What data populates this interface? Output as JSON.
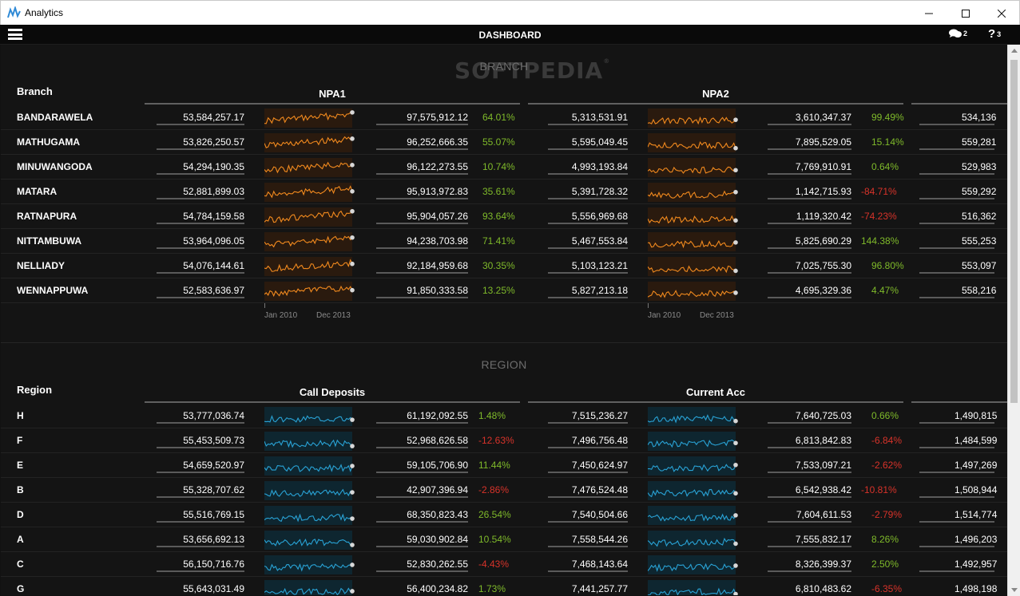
{
  "window": {
    "title": "Analytics"
  },
  "appbar": {
    "title": "DASHBOARD",
    "comments_count": "2",
    "help_count": "3"
  },
  "branch_section": {
    "heading": "BRANCH",
    "row_header": "Branch",
    "groups": [
      "NPA1",
      "NPA2"
    ],
    "axis": {
      "start": "Jan 2010",
      "end": "Dec 2013"
    },
    "sparkline_color": "#f28a1e",
    "sparkline_fill": "#2a1a0e",
    "rows": [
      {
        "name": "BANDARAWELA",
        "g1a": "53,584,257.17",
        "g1b": "97,575,912.12",
        "g1p": "64.01%",
        "g1s": "pos",
        "g2a": "5,313,531.91",
        "g2b": "3,610,347.37",
        "g2p": "99.49%",
        "g2s": "pos",
        "g3": "534,136"
      },
      {
        "name": "MATHUGAMA",
        "g1a": "53,826,250.57",
        "g1b": "96,252,666.35",
        "g1p": "55.07%",
        "g1s": "pos",
        "g2a": "5,595,049.45",
        "g2b": "7,895,529.05",
        "g2p": "15.14%",
        "g2s": "pos",
        "g3": "559,281"
      },
      {
        "name": "MINUWANGODA",
        "g1a": "54,294,190.35",
        "g1b": "96,122,273.55",
        "g1p": "10.74%",
        "g1s": "pos",
        "g2a": "4,993,193.84",
        "g2b": "7,769,910.91",
        "g2p": "0.64%",
        "g2s": "pos",
        "g3": "529,983"
      },
      {
        "name": "MATARA",
        "g1a": "52,881,899.03",
        "g1b": "95,913,972.83",
        "g1p": "35.61%",
        "g1s": "pos",
        "g2a": "5,391,728.32",
        "g2b": "1,142,715.93",
        "g2p": "-84.71%",
        "g2s": "neg",
        "g3": "559,292"
      },
      {
        "name": "RATNAPURA",
        "g1a": "54,784,159.58",
        "g1b": "95,904,057.26",
        "g1p": "93.64%",
        "g1s": "pos",
        "g2a": "5,556,969.68",
        "g2b": "1,119,320.42",
        "g2p": "-74.23%",
        "g2s": "neg",
        "g3": "516,362"
      },
      {
        "name": "NITTAMBUWA",
        "g1a": "53,964,096.05",
        "g1b": "94,238,703.98",
        "g1p": "71.41%",
        "g1s": "pos",
        "g2a": "5,467,553.84",
        "g2b": "5,825,690.29",
        "g2p": "144.38%",
        "g2s": "pos",
        "g3": "555,253"
      },
      {
        "name": "NELLIADY",
        "g1a": "54,076,144.61",
        "g1b": "92,184,959.68",
        "g1p": "30.35%",
        "g1s": "pos",
        "g2a": "5,103,123.21",
        "g2b": "7,025,755.30",
        "g2p": "96.80%",
        "g2s": "pos",
        "g3": "553,097"
      },
      {
        "name": "WENNAPPUWA",
        "g1a": "52,583,636.97",
        "g1b": "91,850,333.58",
        "g1p": "13.25%",
        "g1s": "pos",
        "g2a": "5,827,213.18",
        "g2b": "4,695,329.36",
        "g2p": "4.47%",
        "g2s": "pos",
        "g3": "558,216"
      }
    ]
  },
  "region_section": {
    "heading": "REGION",
    "row_header": "Region",
    "groups": [
      "Call Deposits",
      "Current Acc"
    ],
    "sparkline_color": "#29a3d6",
    "sparkline_fill": "#0e2630",
    "rows": [
      {
        "name": "H",
        "g1a": "53,777,036.74",
        "g1b": "61,192,092.55",
        "g1p": "1.48%",
        "g1s": "pos",
        "g2a": "7,515,236.27",
        "g2b": "7,640,725.03",
        "g2p": "0.66%",
        "g2s": "pos",
        "g3": "1,490,815"
      },
      {
        "name": "F",
        "g1a": "55,453,509.73",
        "g1b": "52,968,626.58",
        "g1p": "-12.63%",
        "g1s": "neg",
        "g2a": "7,496,756.48",
        "g2b": "6,813,842.83",
        "g2p": "-6.84%",
        "g2s": "neg",
        "g3": "1,484,599"
      },
      {
        "name": "E",
        "g1a": "54,659,520.97",
        "g1b": "59,105,706.90",
        "g1p": "11.44%",
        "g1s": "pos",
        "g2a": "7,450,624.97",
        "g2b": "7,533,097.21",
        "g2p": "-2.62%",
        "g2s": "neg",
        "g3": "1,497,269"
      },
      {
        "name": "B",
        "g1a": "55,328,707.62",
        "g1b": "42,907,396.94",
        "g1p": "-2.86%",
        "g1s": "neg",
        "g2a": "7,476,524.48",
        "g2b": "6,542,938.42",
        "g2p": "-10.81%",
        "g2s": "neg",
        "g3": "1,508,944"
      },
      {
        "name": "D",
        "g1a": "55,516,769.15",
        "g1b": "68,350,823.43",
        "g1p": "26.54%",
        "g1s": "pos",
        "g2a": "7,540,504.66",
        "g2b": "7,604,611.53",
        "g2p": "-2.79%",
        "g2s": "neg",
        "g3": "1,514,774"
      },
      {
        "name": "A",
        "g1a": "53,656,692.13",
        "g1b": "59,030,902.84",
        "g1p": "10.54%",
        "g1s": "pos",
        "g2a": "7,558,544.26",
        "g2b": "7,555,832.17",
        "g2p": "8.26%",
        "g2s": "pos",
        "g3": "1,496,203"
      },
      {
        "name": "C",
        "g1a": "56,150,716.76",
        "g1b": "52,830,262.55",
        "g1p": "-4.43%",
        "g1s": "neg",
        "g2a": "7,468,143.64",
        "g2b": "8,326,399.37",
        "g2p": "2.50%",
        "g2s": "pos",
        "g3": "1,492,957"
      },
      {
        "name": "G",
        "g1a": "55,643,031.49",
        "g1b": "56,400,234.82",
        "g1p": "1.73%",
        "g1s": "pos",
        "g2a": "7,441,257.77",
        "g2b": "6,810,483.62",
        "g2p": "-6.35%",
        "g2s": "neg",
        "g3": "1,498,198"
      }
    ]
  },
  "watermark": "SOFTPEDIA"
}
